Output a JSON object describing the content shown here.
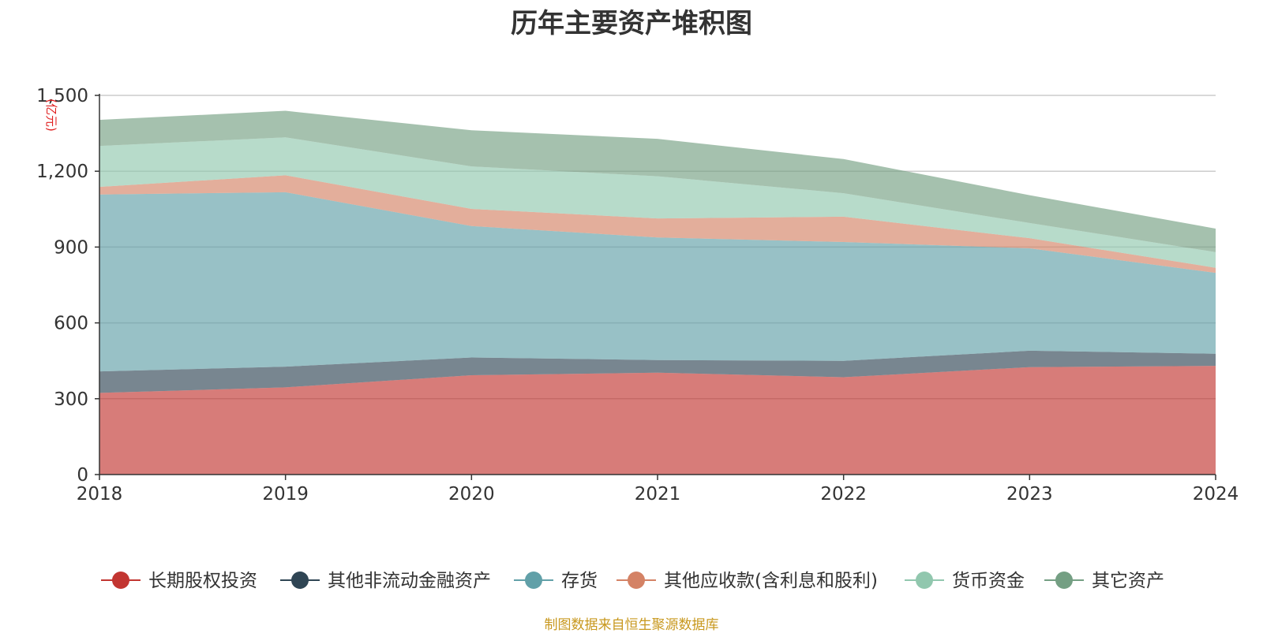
{
  "chart_data": {
    "type": "area",
    "stacked": true,
    "title": "历年主要资产堆积图",
    "unit": "(亿元)",
    "source": "制图数据来自恒生聚源数据库",
    "categories": [
      "2018",
      "2019",
      "2020",
      "2021",
      "2022",
      "2023",
      "2024"
    ],
    "ylim": [
      0,
      1500
    ],
    "yticks": [
      0,
      300,
      600,
      900,
      1200,
      1500
    ],
    "ytick_labels": [
      "0",
      "300",
      "600",
      "900",
      "1,200",
      "1,500"
    ],
    "grid": true,
    "legend_position": "bottom",
    "series": [
      {
        "name": "长期股权投资",
        "color": "#c23531",
        "values": [
          323,
          345,
          393,
          403,
          385,
          425,
          430
        ]
      },
      {
        "name": "其他非流动金融资产",
        "color": "#2f4554",
        "values": [
          85,
          82,
          70,
          50,
          65,
          65,
          48
        ]
      },
      {
        "name": "存货",
        "color": "#61a0a8",
        "values": [
          700,
          690,
          520,
          485,
          470,
          405,
          320
        ]
      },
      {
        "name": "其他应收款(含利息和股利)",
        "color": "#d48265",
        "values": [
          30,
          67,
          68,
          75,
          100,
          40,
          20
        ]
      },
      {
        "name": "货币资金",
        "color": "#91c7ae",
        "values": [
          162,
          150,
          168,
          167,
          93,
          60,
          62
        ]
      },
      {
        "name": "其它资产",
        "color": "#749f83",
        "values": [
          103,
          105,
          143,
          148,
          135,
          110,
          93
        ]
      }
    ]
  }
}
